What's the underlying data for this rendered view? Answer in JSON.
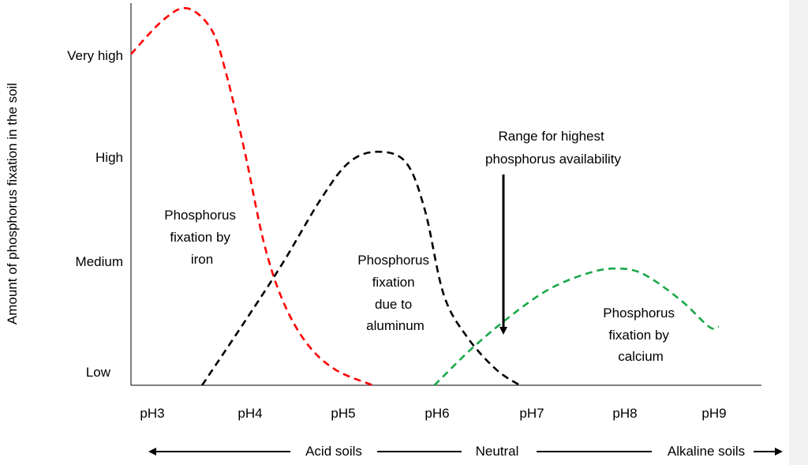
{
  "chart_data": {
    "type": "line",
    "title": "",
    "xlabel": "",
    "ylabel": "Amount of phosphorus fixation in the soil",
    "x_ticks": [
      "pH3",
      "pH4",
      "pH5",
      "pH6",
      "pH7",
      "pH8",
      "pH9"
    ],
    "y_ticks": [
      "Low",
      "Medium",
      "High",
      "Very high"
    ],
    "xlim": [
      3,
      9.65
    ],
    "ylim": [
      0,
      3.6
    ],
    "grid": false,
    "legend": "none",
    "series": [
      {
        "label": "Phosphorus fixation by iron",
        "color": "#ff0000",
        "style": "dashed",
        "points": [
          [
            3.0,
            3.12
          ],
          [
            3.35,
            3.45
          ],
          [
            3.6,
            3.55
          ],
          [
            3.85,
            3.35
          ],
          [
            4.0,
            2.95
          ],
          [
            4.2,
            2.2
          ],
          [
            4.4,
            1.35
          ],
          [
            4.6,
            0.8
          ],
          [
            4.85,
            0.4
          ],
          [
            5.15,
            0.15
          ],
          [
            5.55,
            0.0
          ]
        ]
      },
      {
        "label": "Phosphorus fixation due to aluminum",
        "color": "#000000",
        "style": "dashed",
        "points": [
          [
            3.75,
            0.0
          ],
          [
            4.2,
            0.6
          ],
          [
            4.6,
            1.15
          ],
          [
            5.0,
            1.75
          ],
          [
            5.3,
            2.1
          ],
          [
            5.6,
            2.2
          ],
          [
            5.9,
            2.1
          ],
          [
            6.1,
            1.65
          ],
          [
            6.3,
            0.85
          ],
          [
            6.55,
            0.45
          ],
          [
            6.85,
            0.15
          ],
          [
            7.1,
            0.0
          ]
        ]
      },
      {
        "label": "Phosphorus fixation by calcium",
        "color": "#1aa84a",
        "style": "dashed",
        "points": [
          [
            6.2,
            0.0
          ],
          [
            6.6,
            0.35
          ],
          [
            7.0,
            0.65
          ],
          [
            7.4,
            0.9
          ],
          [
            7.8,
            1.05
          ],
          [
            8.1,
            1.1
          ],
          [
            8.4,
            1.05
          ],
          [
            8.8,
            0.8
          ],
          [
            9.1,
            0.55
          ],
          [
            9.2,
            0.55
          ]
        ]
      }
    ],
    "annotations": [
      {
        "id": "iron",
        "lines": [
          "Phosphorus",
          "fixation by",
          "iron"
        ]
      },
      {
        "id": "aluminum",
        "lines": [
          "Phosphorus",
          "fixation",
          "due to",
          "aluminum"
        ]
      },
      {
        "id": "calcium",
        "lines": [
          "Phosphorus",
          "fixation by",
          "calcium"
        ]
      },
      {
        "id": "range",
        "lines": [
          "Range for highest",
          "phosphorus availability"
        ]
      }
    ],
    "soil_scale": {
      "acid": "Acid soils",
      "neutral": "Neutral",
      "alkaline": "Alkaline soils"
    }
  }
}
